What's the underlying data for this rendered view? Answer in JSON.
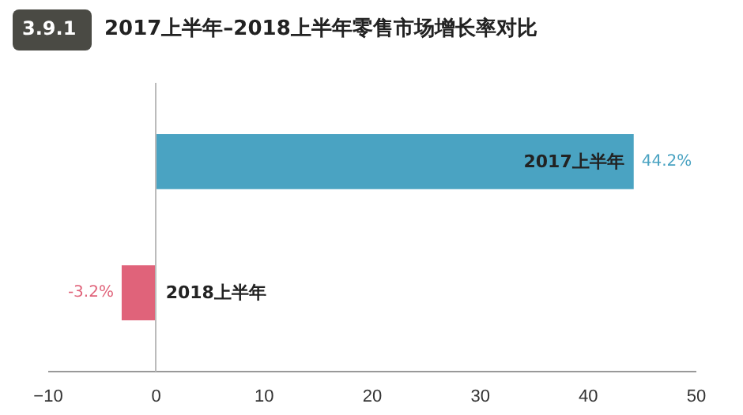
{
  "chart_data": {
    "type": "bar",
    "orientation": "horizontal",
    "subtitle": "3.9.1",
    "title": "2017上半年–2018上半年零售市场增长率对比",
    "categories": [
      "2017上半年",
      "2018上半年"
    ],
    "values": [
      44.2,
      -3.2
    ],
    "value_labels": [
      "44.2%",
      "-3.2%"
    ],
    "colors": [
      "#4aa3c2",
      "#e0637a"
    ],
    "xlim": [
      -10,
      50
    ],
    "xticks": [
      -10,
      0,
      10,
      20,
      30,
      40,
      50
    ],
    "tick_labels": "x"
  }
}
